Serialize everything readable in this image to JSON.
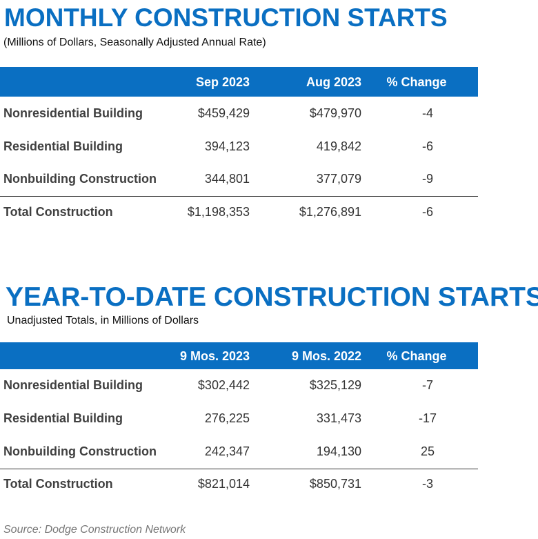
{
  "monthly": {
    "title": "MONTHLY CONSTRUCTION STARTS",
    "subtitle": "(Millions of Dollars, Seasonally Adjusted Annual Rate)",
    "header": [
      "Sep 2023",
      "Aug 2023",
      "% Change"
    ],
    "rows": [
      [
        "Nonresidential Building",
        "$459,429",
        "$479,970",
        "-4"
      ],
      [
        "Residential Building",
        "394,123",
        "419,842",
        "-6"
      ],
      [
        "Nonbuilding Construction",
        "344,801",
        "377,079",
        "-9"
      ],
      [
        "Total Construction",
        "$1,198,353",
        "$1,276,891",
        "-6"
      ]
    ]
  },
  "ytd": {
    "title": "YEAR-TO-DATE CONSTRUCTION STARTS",
    "subtitle": "Unadjusted Totals, in Millions of Dollars",
    "header": [
      "9 Mos. 2023",
      "9 Mos. 2022",
      "% Change"
    ],
    "rows": [
      [
        "Nonresidential Building",
        "$302,442",
        "$325,129",
        "-7"
      ],
      [
        "Residential Building",
        "276,225",
        "331,473",
        "-17"
      ],
      [
        "Nonbuilding Construction",
        "242,347",
        "194,130",
        "25"
      ],
      [
        "Total Construction",
        "$821,014",
        "$850,731",
        "-3"
      ]
    ]
  },
  "source": "Source: Dodge Construction Network"
}
